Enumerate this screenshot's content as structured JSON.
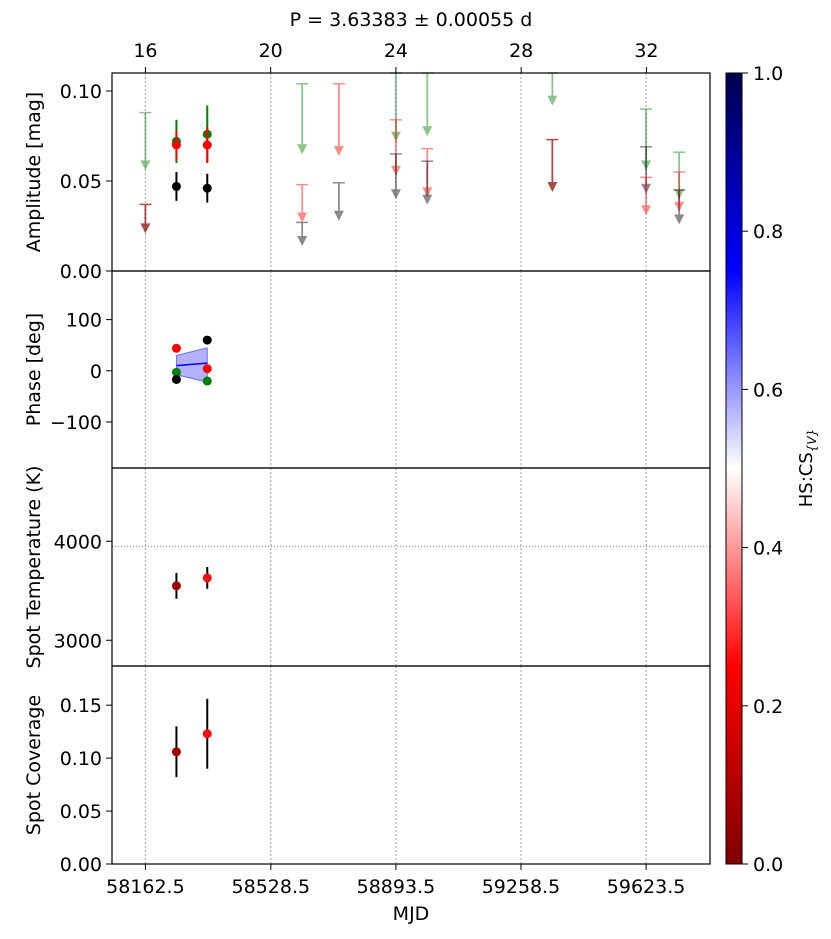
{
  "title": "P = 3.63383 ± 0.00055 d",
  "top_axis": {
    "ticks": [
      "16",
      "20",
      "24",
      "28",
      "32"
    ],
    "tick_values": [
      16,
      20,
      24,
      28,
      32
    ]
  },
  "x_axis": {
    "label": "MJD",
    "ticks": [
      "58162.5",
      "58528.5",
      "58893.5",
      "59258.5",
      "59623.5"
    ],
    "tick_values": [
      58162.5,
      58528.5,
      58893.5,
      59258.5,
      59623.5
    ],
    "range": [
      58065,
      59810
    ]
  },
  "colorbar": {
    "label": "HS:CS",
    "label_sub": "{V}",
    "ticks": [
      "0.0",
      "0.2",
      "0.4",
      "0.6",
      "0.8",
      "1.0"
    ],
    "tick_values": [
      0.0,
      0.2,
      0.4,
      0.6,
      0.8,
      1.0
    ],
    "colormap": "seismic_r",
    "stops": [
      "#800000",
      "#ff0000",
      "#ffffff",
      "#0000ff",
      "#000050"
    ]
  },
  "chart_data": [
    {
      "type": "scatter",
      "panel": "amplitude",
      "ylabel": "Amplitude [mag]",
      "ylim": [
        0,
        0.11
      ],
      "yticks": [
        "0.00",
        "0.05",
        "0.10"
      ],
      "ytick_values": [
        0,
        0.05,
        0.1
      ],
      "vertical_gridlines": [
        58162.5,
        58528.5,
        58893.5,
        59258.5,
        59623.5
      ],
      "points": [
        {
          "x": 58253,
          "y": 0.072,
          "err": 0.012,
          "color": "#008000"
        },
        {
          "x": 58253,
          "y": 0.07,
          "err": 0.008,
          "color": "#ff0000"
        },
        {
          "x": 58253,
          "y": 0.047,
          "err": 0.008,
          "color": "#000000"
        },
        {
          "x": 58343,
          "y": 0.076,
          "err": 0.016,
          "color": "#008000"
        },
        {
          "x": 58343,
          "y": 0.07,
          "err": 0.01,
          "color": "#ff0000"
        },
        {
          "x": 58343,
          "y": 0.046,
          "err": 0.008,
          "color": "#000000"
        }
      ],
      "upper_limits": [
        {
          "x": 58162.5,
          "top": 0.088,
          "bottom": 0.057,
          "color": "#008000",
          "alpha": 0.45
        },
        {
          "x": 58162.5,
          "top": 0.037,
          "bottom": 0.022,
          "color": "#8b0000",
          "alpha": 0.7
        },
        {
          "x": 58620,
          "top": 0.104,
          "bottom": 0.066,
          "color": "#008000",
          "alpha": 0.45
        },
        {
          "x": 58620,
          "top": 0.048,
          "bottom": 0.028,
          "color": "#ff0000",
          "alpha": 0.45
        },
        {
          "x": 58620,
          "top": 0.027,
          "bottom": 0.015,
          "color": "#000000",
          "alpha": 0.45
        },
        {
          "x": 58727,
          "top": 0.104,
          "bottom": 0.065,
          "color": "#ff0000",
          "alpha": 0.45
        },
        {
          "x": 58727,
          "top": 0.049,
          "bottom": 0.029,
          "color": "#000000",
          "alpha": 0.45
        },
        {
          "x": 58893.5,
          "top": 0.11,
          "bottom": 0.073,
          "color": "#008000",
          "alpha": 0.45
        },
        {
          "x": 58893.5,
          "top": 0.084,
          "bottom": 0.054,
          "color": "#ff0000",
          "alpha": 0.45
        },
        {
          "x": 58893.5,
          "top": 0.065,
          "bottom": 0.041,
          "color": "#000000",
          "alpha": 0.45
        },
        {
          "x": 58985,
          "top": 0.11,
          "bottom": 0.076,
          "color": "#008000",
          "alpha": 0.45
        },
        {
          "x": 58985,
          "top": 0.068,
          "bottom": 0.042,
          "color": "#ff0000",
          "alpha": 0.45
        },
        {
          "x": 58985,
          "top": 0.061,
          "bottom": 0.038,
          "color": "#000000",
          "alpha": 0.45
        },
        {
          "x": 59350,
          "top": 0.11,
          "bottom": 0.093,
          "color": "#008000",
          "alpha": 0.45
        },
        {
          "x": 59350,
          "top": 0.073,
          "bottom": 0.045,
          "color": "#8b0000",
          "alpha": 0.7
        },
        {
          "x": 59623.5,
          "top": 0.09,
          "bottom": 0.057,
          "color": "#008000",
          "alpha": 0.45
        },
        {
          "x": 59623.5,
          "top": 0.069,
          "bottom": 0.044,
          "color": "#000000",
          "alpha": 0.45
        },
        {
          "x": 59623.5,
          "top": 0.052,
          "bottom": 0.032,
          "color": "#ff0000",
          "alpha": 0.45
        },
        {
          "x": 59720,
          "top": 0.066,
          "bottom": 0.041,
          "color": "#008000",
          "alpha": 0.45
        },
        {
          "x": 59720,
          "top": 0.055,
          "bottom": 0.034,
          "color": "#ff0000",
          "alpha": 0.45
        },
        {
          "x": 59720,
          "top": 0.045,
          "bottom": 0.027,
          "color": "#000000",
          "alpha": 0.45
        }
      ]
    },
    {
      "type": "scatter",
      "panel": "phase",
      "ylabel": "Phase [deg]",
      "ylim": [
        -190,
        195
      ],
      "yticks": [
        "−100",
        "0",
        "100"
      ],
      "ytick_values": [
        -100,
        0,
        100
      ],
      "points": [
        {
          "x": 58253,
          "y": 44,
          "color": "#ff0000"
        },
        {
          "x": 58253,
          "y": -3,
          "color": "#008000"
        },
        {
          "x": 58253,
          "y": -17,
          "color": "#000000"
        },
        {
          "x": 58343,
          "y": 60,
          "color": "#000000"
        },
        {
          "x": 58343,
          "y": 4,
          "color": "#ff0000"
        },
        {
          "x": 58343,
          "y": -20,
          "color": "#008000"
        }
      ],
      "band": {
        "x": [
          58253,
          58343
        ],
        "upper": [
          30,
          45
        ],
        "lower": [
          -8,
          -22
        ],
        "mid": [
          10,
          15
        ],
        "color": "#0000ff"
      }
    },
    {
      "type": "scatter",
      "panel": "spot_temperature",
      "ylabel": "Spot Temperature (K)",
      "ylim": [
        2740,
        4740
      ],
      "yticks": [
        "3000",
        "4000"
      ],
      "ytick_values": [
        3000,
        4000
      ],
      "reference_line": 3950,
      "points": [
        {
          "x": 58253,
          "y": 3550,
          "err": 130,
          "color": "#a00000"
        },
        {
          "x": 58343,
          "y": 3630,
          "err": 110,
          "color": "#ee1111"
        }
      ]
    },
    {
      "type": "scatter",
      "panel": "spot_coverage",
      "ylabel": "Spot Coverage",
      "ylim": [
        0,
        0.187
      ],
      "yticks": [
        "0.00",
        "0.05",
        "0.10",
        "0.15"
      ],
      "ytick_values": [
        0,
        0.05,
        0.1,
        0.15
      ],
      "points": [
        {
          "x": 58253,
          "y": 0.106,
          "err": 0.024,
          "color": "#a00000"
        },
        {
          "x": 58343,
          "y": 0.123,
          "err": 0.033,
          "color": "#ee1111"
        }
      ]
    }
  ]
}
